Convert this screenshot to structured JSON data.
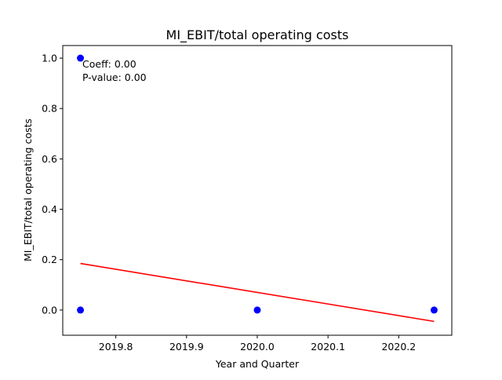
{
  "chart_data": {
    "type": "scatter",
    "title": "MI_EBIT/total operating costs",
    "xlabel": "Year and Quarter",
    "ylabel": "MI_EBIT/total operating costs",
    "xlim": [
      2019.725,
      2020.275
    ],
    "ylim": [
      -0.1,
      1.05
    ],
    "xticks": [
      2019.8,
      2019.9,
      2020.0,
      2020.1,
      2020.2
    ],
    "xtick_labels": [
      "2019.8",
      "2019.9",
      "2020.0",
      "2020.1",
      "2020.2"
    ],
    "yticks": [
      0.0,
      0.2,
      0.4,
      0.6,
      0.8,
      1.0
    ],
    "ytick_labels": [
      "0.0",
      "0.2",
      "0.4",
      "0.6",
      "0.8",
      "1.0"
    ],
    "grid": false,
    "series": [
      {
        "kind": "scatter",
        "color": "#0000ff",
        "points": [
          {
            "x": 2019.75,
            "y": 1.0
          },
          {
            "x": 2019.75,
            "y": 0.0
          },
          {
            "x": 2020.0,
            "y": 0.0
          },
          {
            "x": 2020.25,
            "y": 0.0
          }
        ]
      },
      {
        "kind": "line",
        "color": "#ff0000",
        "points": [
          {
            "x": 2019.75,
            "y": 0.185
          },
          {
            "x": 2020.25,
            "y": -0.045
          }
        ]
      }
    ],
    "annotations": [
      "Coeff: 0.00",
      "P-value: 0.00"
    ]
  }
}
